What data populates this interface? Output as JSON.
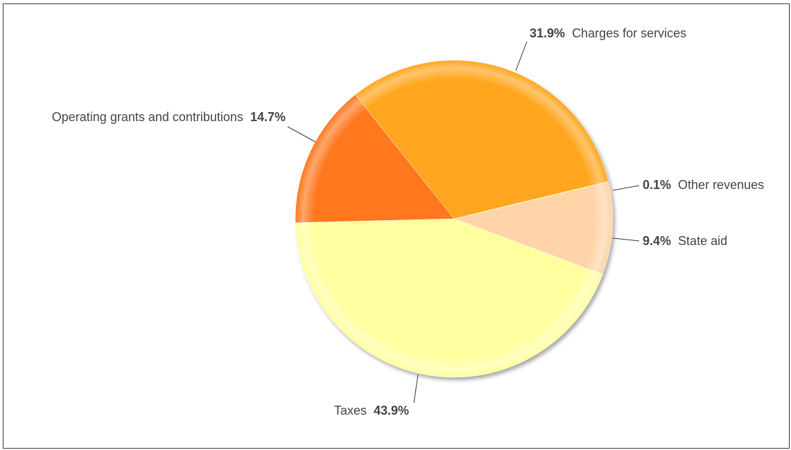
{
  "chart_data": {
    "type": "pie",
    "slices": [
      {
        "label": "Charges for services",
        "value": 31.9,
        "pct_label": "31.9%",
        "color": "#FFA61E",
        "text_order": "pct-first"
      },
      {
        "label": "Other revenues",
        "value": 0.1,
        "pct_label": "0.1%",
        "color": "#FFD000",
        "text_order": "pct-first"
      },
      {
        "label": "State aid",
        "value": 9.4,
        "pct_label": "9.4%",
        "color": "#FFD4A8",
        "text_order": "pct-first"
      },
      {
        "label": "Taxes",
        "value": 43.9,
        "pct_label": "43.9%",
        "color": "#FFFFA0",
        "text_order": "name-first"
      },
      {
        "label": "Operating grants and contributions",
        "value": 14.7,
        "pct_label": "14.7%",
        "color": "#FF781E",
        "text_order": "name-first"
      }
    ],
    "start_angle_deg": -38.5,
    "legend": "none"
  }
}
